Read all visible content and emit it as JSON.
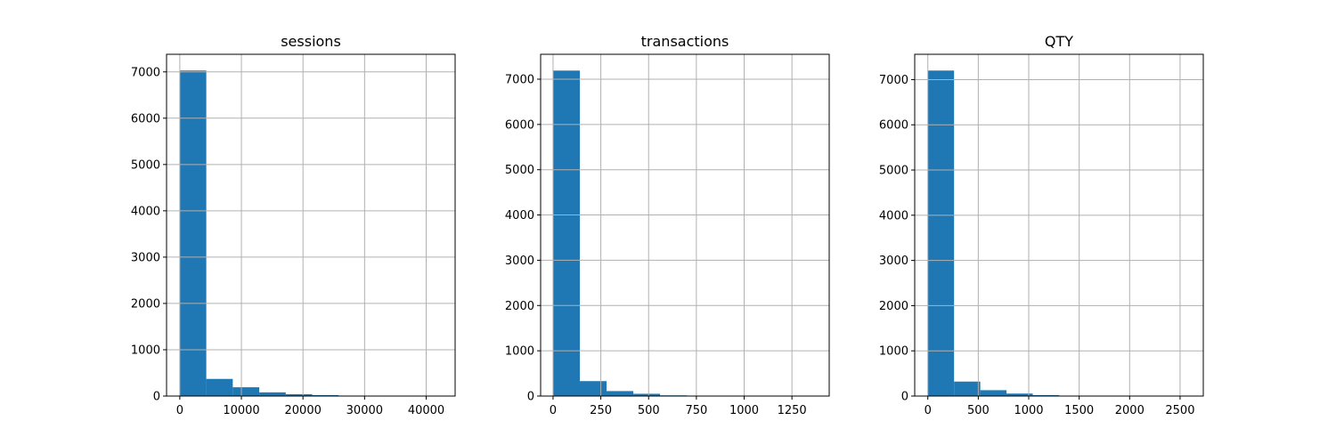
{
  "chart_data": [
    {
      "type": "bar",
      "title": "sessions",
      "xlim": [
        -2150,
        44700
      ],
      "ylim": [
        0,
        7380
      ],
      "xticks": [
        0,
        10000,
        20000,
        30000,
        40000
      ],
      "xtick_labels": [
        "0",
        "10000",
        "20000",
        "30000",
        "40000"
      ],
      "yticks": [
        0,
        1000,
        2000,
        3000,
        4000,
        5000,
        6000,
        7000
      ],
      "ytick_labels": [
        "0",
        "1000",
        "2000",
        "3000",
        "4000",
        "5000",
        "6000",
        "7000"
      ],
      "bin_edges": [
        0,
        4300,
        8600,
        12900,
        17200,
        21500,
        25800,
        30100,
        34400,
        38700,
        43000
      ],
      "counts": [
        7030,
        370,
        190,
        80,
        40,
        20,
        10,
        5,
        3,
        2
      ],
      "grid": true,
      "color": "#1f77b4"
    },
    {
      "type": "bar",
      "title": "transactions",
      "xlim": [
        -65,
        1445
      ],
      "ylim": [
        0,
        7550
      ],
      "xticks": [
        0,
        250,
        500,
        750,
        1000,
        1250
      ],
      "xtick_labels": [
        "0",
        "250",
        "500",
        "750",
        "1000",
        "1250"
      ],
      "yticks": [
        0,
        1000,
        2000,
        3000,
        4000,
        5000,
        6000,
        7000
      ],
      "ytick_labels": [
        "0",
        "1000",
        "2000",
        "3000",
        "4000",
        "5000",
        "6000",
        "7000"
      ],
      "bin_edges": [
        0,
        140,
        280,
        420,
        560,
        700,
        840,
        980,
        1120,
        1260,
        1400
      ],
      "counts": [
        7190,
        330,
        110,
        50,
        15,
        10,
        3,
        2,
        1,
        1
      ],
      "grid": true,
      "color": "#1f77b4"
    },
    {
      "type": "bar",
      "title": "QTY",
      "xlim": [
        -130,
        2730
      ],
      "ylim": [
        0,
        7560
      ],
      "xticks": [
        0,
        500,
        1000,
        1500,
        2000,
        2500
      ],
      "xtick_labels": [
        "0",
        "500",
        "1000",
        "1500",
        "2000",
        "2500"
      ],
      "yticks": [
        0,
        1000,
        2000,
        3000,
        4000,
        5000,
        6000,
        7000
      ],
      "ytick_labels": [
        "0",
        "1000",
        "2000",
        "3000",
        "4000",
        "5000",
        "6000",
        "7000"
      ],
      "bin_edges": [
        0,
        260,
        520,
        780,
        1040,
        1300,
        1560,
        1820,
        2080,
        2340,
        2600
      ],
      "counts": [
        7200,
        320,
        130,
        55,
        20,
        10,
        4,
        2,
        1,
        1
      ],
      "grid": true,
      "color": "#1f77b4"
    }
  ]
}
